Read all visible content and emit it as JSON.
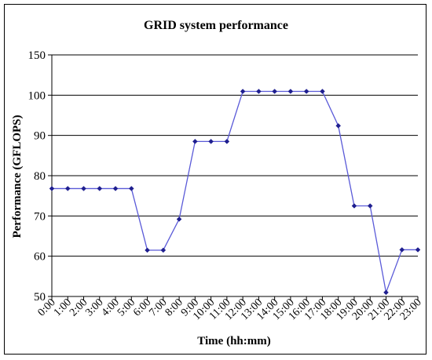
{
  "chart_data": {
    "type": "line",
    "title": "GRID system performance",
    "xlabel": "Time (hh:mm)",
    "ylabel": "Performance (GFLOPS)",
    "ylim": [
      50,
      150
    ],
    "yticks": [
      50,
      60,
      70,
      80,
      90,
      100,
      150
    ],
    "grid": true,
    "categories": [
      "0:00",
      "1:00",
      "2:00",
      "3:00",
      "4:00",
      "5:00",
      "6:00",
      "7:00",
      "8:00",
      "9:00",
      "10:00",
      "11:00",
      "12:00",
      "13:00",
      "14:00",
      "15:00",
      "16:00",
      "17:00",
      "18:00",
      "19:00",
      "20:00",
      "21:00",
      "22:00",
      "23:00"
    ],
    "series": [
      {
        "color": "#1f1f8f",
        "values": [
          76.8,
          76.8,
          76.8,
          76.8,
          76.8,
          76.8,
          61.5,
          61.5,
          69.2,
          88.5,
          88.5,
          88.5,
          104.7,
          104.7,
          104.7,
          104.7,
          104.7,
          104.7,
          92.4,
          72.5,
          72.5,
          51.0,
          61.6,
          61.6
        ]
      }
    ]
  }
}
